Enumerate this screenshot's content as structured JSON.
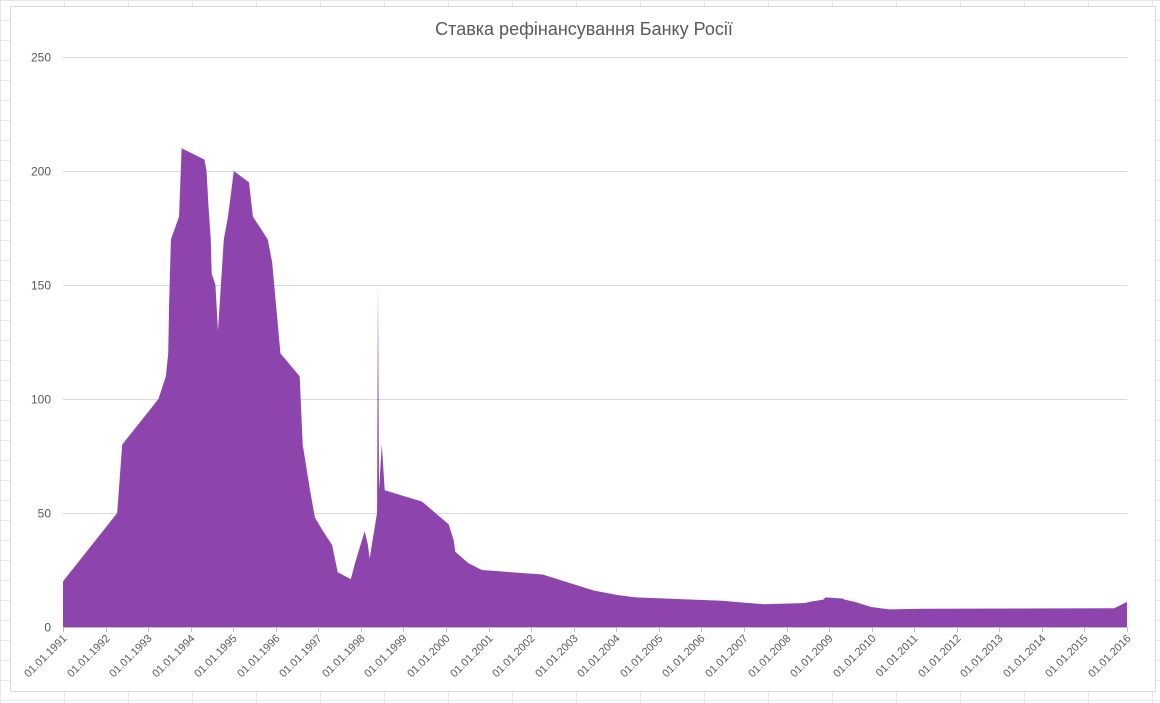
{
  "chart_data": {
    "type": "area",
    "title": "Ставка рефінансування Банку Росії",
    "xlabel": "",
    "ylabel": "",
    "ylim": [
      0,
      250
    ],
    "yticks": [
      0,
      50,
      100,
      150,
      200,
      250
    ],
    "xlim": [
      "1991-01-01",
      "2016-01-01"
    ],
    "xtick_labels": [
      "01.01.1991",
      "01.01.1992",
      "01.01.1993",
      "01.01.1994",
      "01.01.1995",
      "01.01.1996",
      "01.01.1997",
      "01.01.1998",
      "01.01.1999",
      "01.01.2000",
      "01.01.2001",
      "01.01.2002",
      "01.01.2003",
      "01.01.2004",
      "01.01.2005",
      "01.01.2006",
      "01.01.2007",
      "01.01.2008",
      "01.01.2009",
      "01.01.2010",
      "01.01.2011",
      "01.01.2012",
      "01.01.2013",
      "01.01.2014",
      "01.01.2015",
      "01.01.2016"
    ],
    "grid": true,
    "legend": "none",
    "color": "#8e44ad",
    "series": [
      {
        "points": [
          [
            "1991-01-01",
            20
          ],
          [
            "1992-04-10",
            50
          ],
          [
            "1992-05-23",
            80
          ],
          [
            "1993-03-30",
            100
          ],
          [
            "1993-06-02",
            110
          ],
          [
            "1993-06-22",
            120
          ],
          [
            "1993-06-29",
            140
          ],
          [
            "1993-07-15",
            170
          ],
          [
            "1993-09-23",
            180
          ],
          [
            "1993-10-15",
            210
          ],
          [
            "1994-04-29",
            205
          ],
          [
            "1994-05-17",
            200
          ],
          [
            "1994-06-02",
            185
          ],
          [
            "1994-06-22",
            170
          ],
          [
            "1994-06-30",
            155
          ],
          [
            "1994-08-01",
            150
          ],
          [
            "1994-08-23",
            130
          ],
          [
            "1994-10-12",
            170
          ],
          [
            "1994-11-17",
            180
          ],
          [
            "1995-01-06",
            200
          ],
          [
            "1995-05-16",
            195
          ],
          [
            "1995-06-19",
            180
          ],
          [
            "1995-10-24",
            170
          ],
          [
            "1995-12-01",
            160
          ],
          [
            "1996-02-10",
            120
          ],
          [
            "1996-07-24",
            110
          ],
          [
            "1996-08-19",
            80
          ],
          [
            "1996-10-21",
            60
          ],
          [
            "1996-12-02",
            48
          ],
          [
            "1997-02-10",
            42
          ],
          [
            "1997-04-28",
            36
          ],
          [
            "1997-06-16",
            24
          ],
          [
            "1997-10-06",
            21
          ],
          [
            "1997-11-11",
            28
          ],
          [
            "1998-02-02",
            42
          ],
          [
            "1998-03-02",
            36
          ],
          [
            "1998-03-16",
            30
          ],
          [
            "1998-05-19",
            50
          ],
          [
            "1998-05-27",
            150
          ],
          [
            "1998-06-05",
            60
          ],
          [
            "1998-06-29",
            80
          ],
          [
            "1998-07-24",
            60
          ],
          [
            "1999-06-10",
            55
          ],
          [
            "2000-01-24",
            45
          ],
          [
            "2000-03-07",
            38
          ],
          [
            "2000-03-21",
            33
          ],
          [
            "2000-07-10",
            28
          ],
          [
            "2000-11-04",
            25
          ],
          [
            "2002-04-09",
            23
          ],
          [
            "2003-06-21",
            16
          ],
          [
            "2004-01-15",
            14
          ],
          [
            "2004-06-15",
            13
          ],
          [
            "2006-06-26",
            11.5
          ],
          [
            "2007-02-05",
            10.5
          ],
          [
            "2007-06-19",
            10
          ],
          [
            "2008-06-10",
            10.5
          ],
          [
            "2008-07-14",
            11
          ],
          [
            "2008-11-12",
            12
          ],
          [
            "2008-12-01",
            13
          ],
          [
            "2009-04-24",
            12.5
          ],
          [
            "2009-05-14",
            12
          ],
          [
            "2009-08-10",
            11
          ],
          [
            "2009-12-28",
            8.75
          ],
          [
            "2010-06-01",
            7.75
          ],
          [
            "2011-02-28",
            8
          ],
          [
            "2015-09-14",
            8.25
          ],
          [
            "2016-01-01",
            11
          ]
        ]
      }
    ]
  }
}
